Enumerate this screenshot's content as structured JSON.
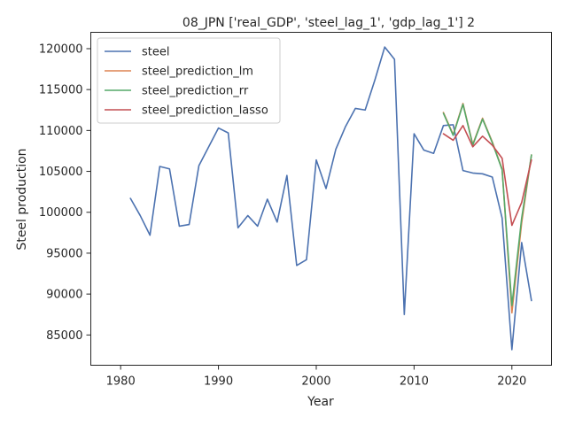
{
  "chart_data": {
    "type": "line",
    "title": "08_JPN ['real_GDP', 'steel_lag_1', 'gdp_lag_1'] 2",
    "xlabel": "Year",
    "ylabel": "Steel production",
    "xlim": [
      1976.95,
      2024.05
    ],
    "ylim": [
      81300,
      122000
    ],
    "xticks": [
      1980,
      1990,
      2000,
      2010,
      2020
    ],
    "yticks": [
      85000,
      90000,
      95000,
      100000,
      105000,
      110000,
      115000,
      120000
    ],
    "legend_position": "top-left",
    "grid": false,
    "series": [
      {
        "name": "steel",
        "color": "#4c72b0",
        "x": [
          1981,
          1982,
          1983,
          1984,
          1985,
          1986,
          1987,
          1988,
          1989,
          1990,
          1991,
          1992,
          1993,
          1994,
          1995,
          1996,
          1997,
          1998,
          1999,
          2000,
          2001,
          2002,
          2003,
          2004,
          2005,
          2006,
          2007,
          2008,
          2009,
          2010,
          2011,
          2012,
          2013,
          2014,
          2015,
          2016,
          2017,
          2018,
          2019,
          2020,
          2021,
          2022
        ],
        "y": [
          101700,
          99600,
          97200,
          105600,
          105300,
          98300,
          98500,
          105700,
          108000,
          110300,
          109700,
          98100,
          99600,
          98300,
          101600,
          98800,
          104500,
          93500,
          94200,
          106400,
          102900,
          107700,
          110500,
          112700,
          112500,
          116200,
          120200,
          118700,
          87500,
          109600,
          107600,
          107200,
          110600,
          110700,
          105100,
          104800,
          104700,
          104300,
          99300,
          83200,
          96300,
          89200
        ]
      },
      {
        "name": "steel_prediction_lm",
        "color": "#dd8452",
        "x": [
          2013,
          2014,
          2015,
          2016,
          2017,
          2018,
          2019,
          2020,
          2021,
          2022
        ],
        "y": [
          112200,
          109500,
          113300,
          108300,
          111500,
          108600,
          105300,
          87700,
          98700,
          107000
        ]
      },
      {
        "name": "steel_prediction_rr",
        "color": "#55a868",
        "x": [
          2013,
          2014,
          2015,
          2016,
          2017,
          2018,
          2019,
          2020,
          2021,
          2022
        ],
        "y": [
          112100,
          109400,
          113200,
          108200,
          111400,
          108500,
          105200,
          88600,
          99300,
          107000
        ]
      },
      {
        "name": "steel_prediction_lasso",
        "color": "#c44e52",
        "x": [
          2013,
          2014,
          2015,
          2016,
          2017,
          2018,
          2019,
          2020,
          2021,
          2022
        ],
        "y": [
          109600,
          108800,
          110600,
          108000,
          109300,
          108200,
          106600,
          98400,
          101200,
          106400
        ]
      }
    ]
  }
}
